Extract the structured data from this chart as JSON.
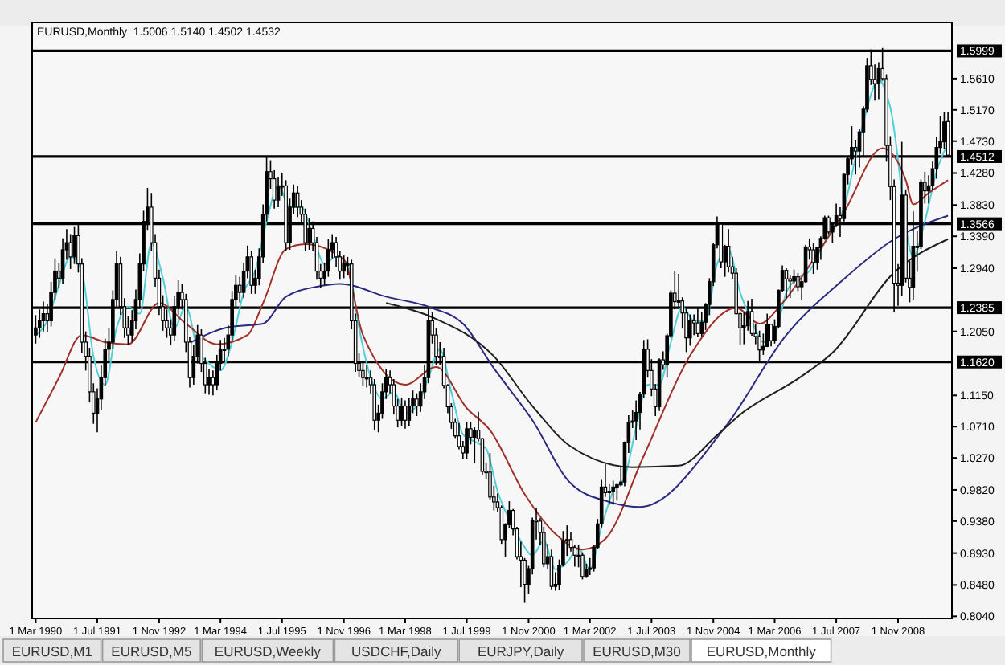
{
  "chart_data": {
    "type": "candlestick",
    "title": "EURUSD,Monthly  1.5006 1.5140 1.4502 1.4532",
    "color": "#000000",
    "x": [
      "1990-03",
      "1990-04",
      "1990-05",
      "1990-06",
      "1990-07",
      "1990-08",
      "1990-09",
      "1990-10",
      "1990-11",
      "1990-12",
      "1991-01",
      "1991-02",
      "1991-03",
      "1991-04",
      "1991-05",
      "1991-06",
      "1991-07",
      "1991-08",
      "1991-09",
      "1991-10",
      "1991-11",
      "1991-12",
      "1992-01",
      "1992-02",
      "1992-03",
      "1992-04",
      "1992-05",
      "1992-06",
      "1992-07",
      "1992-08",
      "1992-09",
      "1992-10",
      "1992-11",
      "1992-12",
      "1993-01",
      "1993-02",
      "1993-03",
      "1993-04",
      "1993-05",
      "1993-06",
      "1993-07",
      "1993-08",
      "1993-09",
      "1993-10",
      "1993-11",
      "1993-12",
      "1994-01",
      "1994-02",
      "1994-03",
      "1994-04",
      "1994-05",
      "1994-06",
      "1994-07",
      "1994-08",
      "1994-09",
      "1994-10",
      "1994-11",
      "1994-12",
      "1995-01",
      "1995-02",
      "1995-03",
      "1995-04",
      "1995-05",
      "1995-06",
      "1995-07",
      "1995-08",
      "1995-09",
      "1995-10",
      "1995-11",
      "1995-12",
      "1996-01",
      "1996-02",
      "1996-03",
      "1996-04",
      "1996-05",
      "1996-06",
      "1996-07",
      "1996-08",
      "1996-09",
      "1996-10",
      "1996-11",
      "1996-12",
      "1997-01",
      "1997-02",
      "1997-03",
      "1997-04",
      "1997-05",
      "1997-06",
      "1997-07",
      "1997-08",
      "1997-09",
      "1997-10",
      "1997-11",
      "1997-12",
      "1998-01",
      "1998-02",
      "1998-03",
      "1998-04",
      "1998-05",
      "1998-06",
      "1998-07",
      "1998-08",
      "1998-09",
      "1998-10",
      "1998-11",
      "1998-12",
      "1999-01",
      "1999-02",
      "1999-03",
      "1999-04",
      "1999-05",
      "1999-06",
      "1999-07",
      "1999-08",
      "1999-09",
      "1999-10",
      "1999-11",
      "1999-12",
      "2000-01",
      "2000-02",
      "2000-03",
      "2000-04",
      "2000-05",
      "2000-06",
      "2000-07",
      "2000-08",
      "2000-09",
      "2000-10",
      "2000-11",
      "2000-12",
      "2001-01",
      "2001-02",
      "2001-03",
      "2001-04",
      "2001-05",
      "2001-06",
      "2001-07",
      "2001-08",
      "2001-09",
      "2001-10",
      "2001-11",
      "2001-12",
      "2002-01",
      "2002-02",
      "2002-03",
      "2002-04",
      "2002-05",
      "2002-06",
      "2002-07",
      "2002-08",
      "2002-09",
      "2002-10",
      "2002-11",
      "2002-12",
      "2003-01",
      "2003-02",
      "2003-03",
      "2003-04",
      "2003-05",
      "2003-06",
      "2003-07",
      "2003-08",
      "2003-09",
      "2003-10",
      "2003-11",
      "2003-12",
      "2004-01",
      "2004-02",
      "2004-03",
      "2004-04",
      "2004-05",
      "2004-06",
      "2004-07",
      "2004-08",
      "2004-09",
      "2004-10",
      "2004-11",
      "2004-12",
      "2005-01",
      "2005-02",
      "2005-03",
      "2005-04",
      "2005-05",
      "2005-06",
      "2005-07",
      "2005-08",
      "2005-09",
      "2005-10",
      "2005-11",
      "2005-12",
      "2006-01",
      "2006-02",
      "2006-03",
      "2006-04",
      "2006-05",
      "2006-06",
      "2006-07",
      "2006-08",
      "2006-09",
      "2006-10",
      "2006-11",
      "2006-12",
      "2007-01",
      "2007-02",
      "2007-03",
      "2007-04",
      "2007-05",
      "2007-06",
      "2007-07",
      "2007-08",
      "2007-09",
      "2007-10",
      "2007-11",
      "2007-12",
      "2008-01",
      "2008-02",
      "2008-03",
      "2008-04",
      "2008-05",
      "2008-06",
      "2008-07",
      "2008-08",
      "2008-09",
      "2008-10",
      "2008-11",
      "2008-12",
      "2009-01",
      "2009-02",
      "2009-03",
      "2009-04",
      "2009-05",
      "2009-06",
      "2009-07",
      "2009-08",
      "2009-09",
      "2009-10",
      "2009-11",
      "2009-12"
    ],
    "ohlc": [
      [
        1.2,
        1.228,
        1.188,
        1.21
      ],
      [
        1.21,
        1.236,
        1.196,
        1.22
      ],
      [
        1.22,
        1.247,
        1.205,
        1.23
      ],
      [
        1.23,
        1.244,
        1.204,
        1.22
      ],
      [
        1.22,
        1.275,
        1.212,
        1.26
      ],
      [
        1.26,
        1.308,
        1.25,
        1.29
      ],
      [
        1.29,
        1.302,
        1.266,
        1.28
      ],
      [
        1.28,
        1.336,
        1.272,
        1.32
      ],
      [
        1.32,
        1.349,
        1.306,
        1.33
      ],
      [
        1.33,
        1.342,
        1.293,
        1.31
      ],
      [
        1.31,
        1.352,
        1.3,
        1.34
      ],
      [
        1.34,
        1.357,
        1.288,
        1.3
      ],
      [
        1.3,
        1.308,
        1.175,
        1.19
      ],
      [
        1.19,
        1.205,
        1.15,
        1.17
      ],
      [
        1.17,
        1.182,
        1.105,
        1.12
      ],
      [
        1.12,
        1.132,
        1.075,
        1.09
      ],
      [
        1.09,
        1.125,
        1.063,
        1.11
      ],
      [
        1.11,
        1.158,
        1.094,
        1.14
      ],
      [
        1.14,
        1.195,
        1.128,
        1.18
      ],
      [
        1.18,
        1.21,
        1.162,
        1.19
      ],
      [
        1.19,
        1.263,
        1.18,
        1.25
      ],
      [
        1.25,
        1.318,
        1.24,
        1.3
      ],
      [
        1.3,
        1.31,
        1.228,
        1.24
      ],
      [
        1.24,
        1.252,
        1.196,
        1.21
      ],
      [
        1.21,
        1.226,
        1.186,
        1.2
      ],
      [
        1.2,
        1.235,
        1.19,
        1.22
      ],
      [
        1.22,
        1.264,
        1.208,
        1.25
      ],
      [
        1.25,
        1.315,
        1.24,
        1.3
      ],
      [
        1.3,
        1.375,
        1.29,
        1.36
      ],
      [
        1.36,
        1.407,
        1.348,
        1.38
      ],
      [
        1.38,
        1.4,
        1.318,
        1.33
      ],
      [
        1.33,
        1.342,
        1.268,
        1.28
      ],
      [
        1.28,
        1.292,
        1.228,
        1.24
      ],
      [
        1.24,
        1.256,
        1.206,
        1.22
      ],
      [
        1.22,
        1.236,
        1.196,
        1.21
      ],
      [
        1.21,
        1.222,
        1.186,
        1.2
      ],
      [
        1.2,
        1.255,
        1.192,
        1.24
      ],
      [
        1.24,
        1.277,
        1.228,
        1.26
      ],
      [
        1.26,
        1.272,
        1.236,
        1.25
      ],
      [
        1.25,
        1.258,
        1.176,
        1.19
      ],
      [
        1.19,
        1.198,
        1.126,
        1.14
      ],
      [
        1.14,
        1.186,
        1.13,
        1.17
      ],
      [
        1.17,
        1.214,
        1.16,
        1.2
      ],
      [
        1.2,
        1.208,
        1.148,
        1.16
      ],
      [
        1.16,
        1.168,
        1.118,
        1.13
      ],
      [
        1.13,
        1.152,
        1.116,
        1.14
      ],
      [
        1.14,
        1.15,
        1.115,
        1.13
      ],
      [
        1.13,
        1.172,
        1.122,
        1.16
      ],
      [
        1.16,
        1.193,
        1.15,
        1.18
      ],
      [
        1.18,
        1.196,
        1.164,
        1.18
      ],
      [
        1.18,
        1.214,
        1.17,
        1.2
      ],
      [
        1.2,
        1.262,
        1.192,
        1.25
      ],
      [
        1.25,
        1.284,
        1.24,
        1.27
      ],
      [
        1.27,
        1.282,
        1.246,
        1.26
      ],
      [
        1.26,
        1.302,
        1.252,
        1.29
      ],
      [
        1.29,
        1.326,
        1.28,
        1.31
      ],
      [
        1.31,
        1.318,
        1.258,
        1.27
      ],
      [
        1.27,
        1.292,
        1.258,
        1.28
      ],
      [
        1.28,
        1.322,
        1.27,
        1.31
      ],
      [
        1.31,
        1.384,
        1.302,
        1.37
      ],
      [
        1.37,
        1.452,
        1.36,
        1.43
      ],
      [
        1.43,
        1.446,
        1.406,
        1.42
      ],
      [
        1.42,
        1.432,
        1.378,
        1.39
      ],
      [
        1.39,
        1.423,
        1.38,
        1.41
      ],
      [
        1.41,
        1.428,
        1.396,
        1.41
      ],
      [
        1.41,
        1.418,
        1.318,
        1.33
      ],
      [
        1.33,
        1.392,
        1.32,
        1.38
      ],
      [
        1.38,
        1.412,
        1.37,
        1.4
      ],
      [
        1.4,
        1.41,
        1.366,
        1.38
      ],
      [
        1.38,
        1.39,
        1.356,
        1.37
      ],
      [
        1.37,
        1.378,
        1.318,
        1.33
      ],
      [
        1.33,
        1.364,
        1.32,
        1.35
      ],
      [
        1.35,
        1.36,
        1.318,
        1.33
      ],
      [
        1.33,
        1.338,
        1.278,
        1.29
      ],
      [
        1.29,
        1.3,
        1.266,
        1.28
      ],
      [
        1.28,
        1.302,
        1.27,
        1.29
      ],
      [
        1.29,
        1.335,
        1.282,
        1.32
      ],
      [
        1.32,
        1.342,
        1.308,
        1.33
      ],
      [
        1.33,
        1.338,
        1.296,
        1.31
      ],
      [
        1.31,
        1.318,
        1.278,
        1.29
      ],
      [
        1.29,
        1.312,
        1.28,
        1.3
      ],
      [
        1.3,
        1.31,
        1.284,
        1.3
      ],
      [
        1.3,
        1.306,
        1.208,
        1.22
      ],
      [
        1.22,
        1.23,
        1.148,
        1.16
      ],
      [
        1.16,
        1.175,
        1.14,
        1.15
      ],
      [
        1.15,
        1.162,
        1.128,
        1.14
      ],
      [
        1.14,
        1.158,
        1.126,
        1.14
      ],
      [
        1.14,
        1.15,
        1.118,
        1.13
      ],
      [
        1.13,
        1.138,
        1.066,
        1.08
      ],
      [
        1.08,
        1.102,
        1.063,
        1.09
      ],
      [
        1.09,
        1.132,
        1.082,
        1.12
      ],
      [
        1.12,
        1.152,
        1.11,
        1.14
      ],
      [
        1.14,
        1.15,
        1.118,
        1.13
      ],
      [
        1.13,
        1.138,
        1.088,
        1.1
      ],
      [
        1.1,
        1.11,
        1.07,
        1.08
      ],
      [
        1.08,
        1.112,
        1.072,
        1.1
      ],
      [
        1.1,
        1.108,
        1.068,
        1.08
      ],
      [
        1.08,
        1.112,
        1.072,
        1.1
      ],
      [
        1.1,
        1.122,
        1.09,
        1.11
      ],
      [
        1.11,
        1.118,
        1.086,
        1.1
      ],
      [
        1.1,
        1.132,
        1.092,
        1.12
      ],
      [
        1.12,
        1.158,
        1.11,
        1.14
      ],
      [
        1.14,
        1.238,
        1.132,
        1.22
      ],
      [
        1.22,
        1.232,
        1.188,
        1.2
      ],
      [
        1.2,
        1.21,
        1.158,
        1.17
      ],
      [
        1.17,
        1.19,
        1.158,
        1.17
      ],
      [
        1.17,
        1.182,
        1.125,
        1.129
      ],
      [
        1.129,
        1.131,
        1.09,
        1.099
      ],
      [
        1.099,
        1.104,
        1.068,
        1.077
      ],
      [
        1.077,
        1.082,
        1.055,
        1.058
      ],
      [
        1.058,
        1.076,
        1.039,
        1.043
      ],
      [
        1.043,
        1.051,
        1.026,
        1.034
      ],
      [
        1.034,
        1.077,
        1.026,
        1.068
      ],
      [
        1.068,
        1.078,
        1.046,
        1.056
      ],
      [
        1.056,
        1.07,
        1.02,
        1.066
      ],
      [
        1.066,
        1.092,
        1.05,
        1.054
      ],
      [
        1.054,
        1.055,
        1.003,
        1.008
      ],
      [
        1.008,
        1.02,
        0.997,
        1.007
      ],
      [
        1.007,
        1.034,
        0.968,
        0.972
      ],
      [
        0.972,
        0.988,
        0.953,
        0.965
      ],
      [
        0.965,
        0.977,
        0.951,
        0.957
      ],
      [
        0.957,
        0.96,
        0.906,
        0.912
      ],
      [
        0.912,
        0.935,
        0.888,
        0.933
      ],
      [
        0.933,
        0.966,
        0.928,
        0.953
      ],
      [
        0.953,
        0.955,
        0.918,
        0.927
      ],
      [
        0.927,
        0.93,
        0.884,
        0.888
      ],
      [
        0.888,
        0.909,
        0.845,
        0.883
      ],
      [
        0.883,
        0.886,
        0.823,
        0.849
      ],
      [
        0.849,
        0.875,
        0.836,
        0.871
      ],
      [
        0.871,
        0.943,
        0.863,
        0.939
      ],
      [
        0.939,
        0.956,
        0.912,
        0.938
      ],
      [
        0.938,
        0.942,
        0.904,
        0.922
      ],
      [
        0.922,
        0.93,
        0.873,
        0.878
      ],
      [
        0.878,
        0.906,
        0.871,
        0.888
      ],
      [
        0.888,
        0.898,
        0.842,
        0.846
      ],
      [
        0.846,
        0.866,
        0.84,
        0.849
      ],
      [
        0.849,
        0.884,
        0.841,
        0.876
      ],
      [
        0.876,
        0.924,
        0.874,
        0.911
      ],
      [
        0.911,
        0.932,
        0.889,
        0.912
      ],
      [
        0.912,
        0.923,
        0.895,
        0.901
      ],
      [
        0.901,
        0.905,
        0.874,
        0.89
      ],
      [
        0.89,
        0.905,
        0.873,
        0.89
      ],
      [
        0.89,
        0.894,
        0.856,
        0.86
      ],
      [
        0.86,
        0.878,
        0.858,
        0.87
      ],
      [
        0.87,
        0.886,
        0.862,
        0.872
      ],
      [
        0.872,
        0.905,
        0.867,
        0.901
      ],
      [
        0.901,
        0.941,
        0.899,
        0.934
      ],
      [
        0.934,
        0.996,
        0.929,
        0.986
      ],
      [
        0.986,
        1.018,
        0.972,
        0.978
      ],
      [
        0.978,
        0.99,
        0.961,
        0.98
      ],
      [
        0.98,
        0.995,
        0.961,
        0.986
      ],
      [
        0.986,
        0.992,
        0.967,
        0.989
      ],
      [
        0.989,
        1.014,
        0.987,
        0.993
      ],
      [
        0.993,
        1.05,
        0.987,
        1.049
      ],
      [
        1.049,
        1.087,
        1.034,
        1.077
      ],
      [
        1.077,
        1.094,
        1.069,
        1.079
      ],
      [
        1.079,
        1.108,
        1.052,
        1.091
      ],
      [
        1.091,
        1.12,
        1.067,
        1.117
      ],
      [
        1.117,
        1.193,
        1.112,
        1.18
      ],
      [
        1.18,
        1.194,
        1.14,
        1.15
      ],
      [
        1.15,
        1.166,
        1.114,
        1.124
      ],
      [
        1.124,
        1.131,
        1.086,
        1.099
      ],
      [
        1.099,
        1.167,
        1.093,
        1.165
      ],
      [
        1.165,
        1.177,
        1.151,
        1.158
      ],
      [
        1.158,
        1.202,
        1.14,
        1.199
      ],
      [
        1.199,
        1.263,
        1.196,
        1.259
      ],
      [
        1.259,
        1.29,
        1.236,
        1.247
      ],
      [
        1.247,
        1.286,
        1.237,
        1.248
      ],
      [
        1.248,
        1.253,
        1.209,
        1.231
      ],
      [
        1.231,
        1.239,
        1.176,
        1.196
      ],
      [
        1.196,
        1.229,
        1.185,
        1.22
      ],
      [
        1.22,
        1.229,
        1.2,
        1.217
      ],
      [
        1.217,
        1.238,
        1.198,
        1.202
      ],
      [
        1.202,
        1.233,
        1.198,
        1.218
      ],
      [
        1.218,
        1.245,
        1.207,
        1.243
      ],
      [
        1.243,
        1.28,
        1.228,
        1.275
      ],
      [
        1.275,
        1.33,
        1.269,
        1.327
      ],
      [
        1.327,
        1.367,
        1.322,
        1.356
      ],
      [
        1.356,
        1.358,
        1.294,
        1.303
      ],
      [
        1.303,
        1.327,
        1.282,
        1.325
      ],
      [
        1.325,
        1.349,
        1.288,
        1.296
      ],
      [
        1.296,
        1.31,
        1.279,
        1.287
      ],
      [
        1.287,
        1.294,
        1.229,
        1.23
      ],
      [
        1.23,
        1.233,
        1.186,
        1.21
      ],
      [
        1.21,
        1.232,
        1.187,
        1.213
      ],
      [
        1.213,
        1.248,
        1.206,
        1.233
      ],
      [
        1.233,
        1.251,
        1.199,
        1.202
      ],
      [
        1.202,
        1.216,
        1.187,
        1.198
      ],
      [
        1.198,
        1.206,
        1.164,
        1.179
      ],
      [
        1.179,
        1.202,
        1.172,
        1.184
      ],
      [
        1.184,
        1.23,
        1.183,
        1.215
      ],
      [
        1.215,
        1.216,
        1.184,
        1.192
      ],
      [
        1.192,
        1.222,
        1.188,
        1.212
      ],
      [
        1.212,
        1.264,
        1.21,
        1.263
      ],
      [
        1.263,
        1.298,
        1.26,
        1.291
      ],
      [
        1.291,
        1.294,
        1.252,
        1.279
      ],
      [
        1.279,
        1.285,
        1.252,
        1.276
      ],
      [
        1.276,
        1.292,
        1.272,
        1.282
      ],
      [
        1.282,
        1.287,
        1.262,
        1.268
      ],
      [
        1.268,
        1.28,
        1.25,
        1.275
      ],
      [
        1.275,
        1.327,
        1.274,
        1.324
      ],
      [
        1.324,
        1.336,
        1.306,
        1.32
      ],
      [
        1.32,
        1.329,
        1.286,
        1.302
      ],
      [
        1.302,
        1.324,
        1.292,
        1.323
      ],
      [
        1.323,
        1.339,
        1.306,
        1.336
      ],
      [
        1.336,
        1.368,
        1.334,
        1.365
      ],
      [
        1.365,
        1.368,
        1.342,
        1.345
      ],
      [
        1.345,
        1.355,
        1.33,
        1.354
      ],
      [
        1.354,
        1.385,
        1.352,
        1.368
      ],
      [
        1.368,
        1.38,
        1.338,
        1.364
      ],
      [
        1.364,
        1.427,
        1.36,
        1.426
      ],
      [
        1.426,
        1.45,
        1.412,
        1.448
      ],
      [
        1.448,
        1.494,
        1.44,
        1.464
      ],
      [
        1.464,
        1.475,
        1.426,
        1.459
      ],
      [
        1.459,
        1.49,
        1.436,
        1.486
      ],
      [
        1.486,
        1.522,
        1.45,
        1.518
      ],
      [
        1.518,
        1.59,
        1.513,
        1.579
      ],
      [
        1.579,
        1.602,
        1.552,
        1.56
      ],
      [
        1.56,
        1.581,
        1.53,
        1.554
      ],
      [
        1.554,
        1.584,
        1.532,
        1.575
      ],
      [
        1.575,
        1.604,
        1.558,
        1.561
      ],
      [
        1.561,
        1.567,
        1.444,
        1.467
      ],
      [
        1.467,
        1.48,
        1.39,
        1.409
      ],
      [
        1.409,
        1.419,
        1.233,
        1.273
      ],
      [
        1.273,
        1.3,
        1.241,
        1.27
      ],
      [
        1.27,
        1.472,
        1.255,
        1.397
      ],
      [
        1.397,
        1.405,
        1.274,
        1.28
      ],
      [
        1.28,
        1.304,
        1.246,
        1.267
      ],
      [
        1.267,
        1.374,
        1.25,
        1.325
      ],
      [
        1.325,
        1.347,
        1.289,
        1.324
      ],
      [
        1.324,
        1.419,
        1.321,
        1.415
      ],
      [
        1.415,
        1.43,
        1.385,
        1.403
      ],
      [
        1.403,
        1.425,
        1.385,
        1.41
      ],
      [
        1.41,
        1.444,
        1.404,
        1.434
      ],
      [
        1.434,
        1.479,
        1.42,
        1.464
      ],
      [
        1.464,
        1.508,
        1.455,
        1.472
      ],
      [
        1.472,
        1.514,
        1.462,
        1.5
      ],
      [
        1.5006,
        1.514,
        1.4502,
        1.4532
      ]
    ],
    "series": [
      {
        "type": "line",
        "color": "#4fd0d8",
        "x": [
          "1990-03",
          "1990-06",
          "1990-09",
          "1990-12",
          "1991-03",
          "1991-06",
          "1991-09",
          "1991-12",
          "1992-03",
          "1992-06",
          "1992-09",
          "1992-12",
          "1993-03",
          "1993-06",
          "1993-09",
          "1993-12",
          "1994-03",
          "1994-06",
          "1994-09",
          "1994-12",
          "1995-03",
          "1995-06",
          "1995-09",
          "1995-12",
          "1996-03",
          "1996-06",
          "1996-09",
          "1996-12",
          "1997-03",
          "1997-06",
          "1997-09",
          "1997-12",
          "1998-03",
          "1998-06",
          "1998-09",
          "1998-12",
          "1999-03",
          "1999-06",
          "1999-09",
          "1999-12",
          "2000-03",
          "2000-06",
          "2000-09",
          "2000-12",
          "2001-03",
          "2001-06",
          "2001-09",
          "2001-12",
          "2002-03",
          "2002-06",
          "2002-09",
          "2002-12",
          "2003-03",
          "2003-06",
          "2003-09",
          "2003-12",
          "2004-03",
          "2004-06",
          "2004-09",
          "2004-12",
          "2005-03",
          "2005-06",
          "2005-09",
          "2005-12",
          "2006-03",
          "2006-06",
          "2006-09",
          "2006-12",
          "2007-03",
          "2007-06",
          "2007-09",
          "2007-12",
          "2008-03",
          "2008-06",
          "2008-09",
          "2008-12",
          "2009-03",
          "2009-06",
          "2009-09",
          "2009-12"
        ],
        "values": [
          1.2,
          1.22,
          1.27,
          1.31,
          1.29,
          1.17,
          1.13,
          1.21,
          1.24,
          1.23,
          1.33,
          1.28,
          1.21,
          1.24,
          1.18,
          1.16,
          1.15,
          1.19,
          1.26,
          1.29,
          1.36,
          1.41,
          1.38,
          1.38,
          1.34,
          1.3,
          1.31,
          1.3,
          1.21,
          1.14,
          1.11,
          1.12,
          1.09,
          1.1,
          1.14,
          1.18,
          1.12,
          1.06,
          1.05,
          1.04,
          0.98,
          0.94,
          0.91,
          0.89,
          0.91,
          0.87,
          0.88,
          0.9,
          0.87,
          0.93,
          0.98,
          1.0,
          1.07,
          1.13,
          1.13,
          1.19,
          1.24,
          1.22,
          1.22,
          1.3,
          1.32,
          1.26,
          1.22,
          1.19,
          1.2,
          1.26,
          1.28,
          1.29,
          1.32,
          1.35,
          1.38,
          1.45,
          1.52,
          1.56,
          1.52,
          null,
          1.31,
          1.36,
          1.43,
          1.47
        ]
      },
      {
        "type": "line",
        "color": "#a03028",
        "x": [
          "1990-03",
          "1990-09",
          "1991-03",
          "1991-09",
          "1992-03",
          "1992-11",
          "1993-06",
          "1994-02",
          "1994-10",
          "1995-02",
          "1995-08",
          "1996-01",
          "1996-11",
          "1997-04",
          "1998-03",
          "1998-11",
          "1999-07",
          "2000-01",
          "2000-10",
          "2001-06",
          "2002-01",
          "2002-07",
          "2003-05",
          "2004-05",
          "2005-05",
          "2005-11",
          "2006-05",
          "2007-01",
          "2007-09",
          "2008-07",
          "2009-01",
          "2009-03",
          "2009-07",
          "2009-12"
        ],
        "values": [
          1.077,
          1.14,
          1.2,
          1.19,
          1.187,
          1.245,
          1.216,
          1.187,
          1.2,
          1.245,
          1.321,
          1.328,
          1.306,
          1.2,
          1.13,
          1.155,
          1.097,
          1.066,
          0.976,
          0.92,
          0.898,
          0.913,
          1.03,
          1.171,
          1.238,
          1.216,
          1.245,
          1.306,
          1.373,
          1.463,
          1.418,
          1.384,
          1.4,
          1.418
        ]
      },
      {
        "type": "line",
        "color": "#2a2a80",
        "x": [
          "1993-07",
          "1994-05",
          "1995-02",
          "1995-08",
          "1996-04",
          "1996-10",
          "1997-10",
          "1998-10",
          "1999-06",
          "2000-02",
          "2000-12",
          "2001-10",
          "2002-08",
          "2003-04",
          "2005-02",
          "2006-06",
          "2007-09",
          "2008-10",
          "2009-12"
        ],
        "values": [
          1.189,
          1.211,
          1.216,
          1.254,
          1.268,
          1.272,
          1.254,
          1.238,
          1.216,
          1.153,
          1.08,
          0.991,
          0.965,
          0.958,
          1.07,
          1.2,
          1.279,
          1.335,
          1.368
        ]
      },
      {
        "type": "line",
        "color": "#202020",
        "x": [
          "1997-10",
          "1998-10",
          "2000-02",
          "2000-12",
          "2001-10",
          "2003-02",
          "2004-02",
          "2004-12",
          "2005-06",
          "2006-10",
          "2007-06",
          "2008-10",
          "2009-12"
        ],
        "values": [
          1.245,
          1.225,
          1.17,
          1.1,
          1.043,
          1.014,
          1.016,
          1.059,
          1.088,
          1.142,
          1.175,
          1.288,
          1.335
        ]
      }
    ],
    "xlim": [
      "1990-02",
      "2010-01"
    ],
    "xticks": [
      {
        "value": "1990-03",
        "label": "1 Mar 1990"
      },
      {
        "value": "1991-07",
        "label": "1 Jul 1991"
      },
      {
        "value": "1992-11",
        "label": "1 Nov 1992"
      },
      {
        "value": "1994-03",
        "label": "1 Mar 1994"
      },
      {
        "value": "1995-07",
        "label": "1 Jul 1995"
      },
      {
        "value": "1996-11",
        "label": "1 Nov 1996"
      },
      {
        "value": "1998-03",
        "label": "1 Mar 1998"
      },
      {
        "value": "1999-07",
        "label": "1 Jul 1999"
      },
      {
        "value": "2000-11",
        "label": "1 Nov 2000"
      },
      {
        "value": "2002-03",
        "label": "1 Mar 2002"
      },
      {
        "value": "2003-07",
        "label": "1 Jul 2003"
      },
      {
        "value": "2004-11",
        "label": "1 Nov 2004"
      },
      {
        "value": "2006-03",
        "label": "1 Mar 2006"
      },
      {
        "value": "2007-07",
        "label": "1 Jul 2007"
      },
      {
        "value": "2008-11",
        "label": "1 Nov 2008"
      }
    ],
    "ylim": [
      0.801,
      1.64
    ],
    "yticks": [
      {
        "value": 1.561,
        "label": "1.5610"
      },
      {
        "value": 1.517,
        "label": "1.5170"
      },
      {
        "value": 1.473,
        "label": "1.4730"
      },
      {
        "value": 1.428,
        "label": "1.4280"
      },
      {
        "value": 1.383,
        "label": "1.3830"
      },
      {
        "value": 1.339,
        "label": "1.3390"
      },
      {
        "value": 1.294,
        "label": "1.2940"
      },
      {
        "value": 1.205,
        "label": "1.2050"
      },
      {
        "value": 1.115,
        "label": "1.1150"
      },
      {
        "value": 1.071,
        "label": "1.0710"
      },
      {
        "value": 1.027,
        "label": "1.0270"
      },
      {
        "value": 0.982,
        "label": "0.9820"
      },
      {
        "value": 0.938,
        "label": "0.9380"
      },
      {
        "value": 0.893,
        "label": "0.8930"
      },
      {
        "value": 0.848,
        "label": "0.8480"
      },
      {
        "value": 0.804,
        "label": "0.8040"
      }
    ],
    "ref_lines": [
      {
        "axis": "y",
        "value": 1.5999,
        "label": "1.5999",
        "color": "#000000"
      },
      {
        "axis": "y",
        "value": 1.4512,
        "label": "1.4512",
        "color": "#000000"
      },
      {
        "axis": "y",
        "value": 1.3566,
        "label": "1.3566",
        "color": "#000000"
      },
      {
        "axis": "y",
        "value": 1.2385,
        "label": "1.2385",
        "color": "#000000"
      },
      {
        "axis": "y",
        "value": 1.162,
        "label": "1.1620",
        "color": "#000000"
      }
    ],
    "annotations": [
      "EURUSD,M1",
      "EURUSD,M5",
      "EURUSD,Weekly",
      "USDCHF,Daily",
      "EURJPY,Daily",
      "EURUSD,M30",
      "EURUSD,Monthly"
    ]
  }
}
